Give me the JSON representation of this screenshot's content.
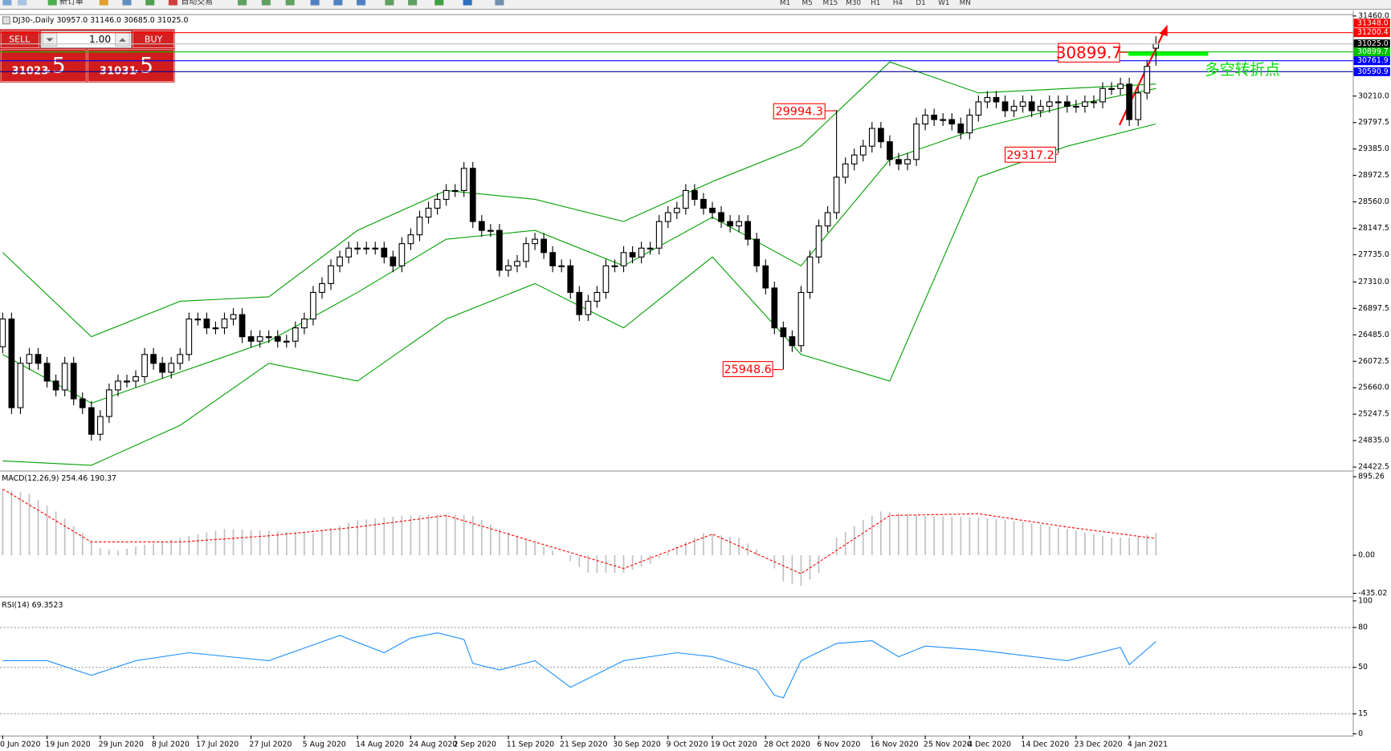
{
  "toolbar": {
    "new_order": "新订单",
    "auto_trading": "自动交易",
    "timeframes": [
      "M1",
      "M5",
      "M15",
      "M30",
      "H1",
      "H4",
      "D1",
      "W1",
      "MN"
    ]
  },
  "trade_panel": {
    "sell": "SELL",
    "lot": "1.00",
    "buy": "BUY",
    "bid": "31023",
    "bid_fraction": ".5",
    "ask": "31031",
    "ask_fraction": ".5"
  },
  "chart_data": [
    {
      "type": "candlestick",
      "title": "DJ30-,Daily  30957.0 31146.0 30685.0 31025.0",
      "categories": [
        "0 Jun 2020",
        null,
        null,
        null,
        null,
        "19 Jun 2020",
        null,
        null,
        null,
        null,
        null,
        "29 Jun 2020",
        null,
        null,
        null,
        null,
        null,
        "8 Jul 2020",
        null,
        null,
        null,
        null,
        "17 Jul 2020",
        null,
        null,
        null,
        null,
        null,
        "27 Jul 2020",
        null,
        null,
        null,
        null,
        null,
        "5 Aug 2020",
        null,
        null,
        null,
        null,
        null,
        "14 Aug 2020",
        null,
        null,
        null,
        null,
        null,
        "24 Aug 2020",
        null,
        null,
        null,
        null,
        "2 Sep 2020",
        null,
        null,
        null,
        null,
        null,
        "11 Sep 2020",
        null,
        null,
        null,
        null,
        null,
        "21 Sep 2020",
        null,
        null,
        null,
        null,
        null,
        "30 Sep 2020",
        null,
        null,
        null,
        null,
        null,
        "9 Oct 2020",
        null,
        null,
        null,
        null,
        "19 Oct 2020",
        null,
        null,
        null,
        null,
        null,
        "28 Oct 2020",
        null,
        null,
        null,
        null,
        null,
        "6 Nov 2020",
        null,
        null,
        null,
        null,
        null,
        "16 Nov 2020",
        null,
        null,
        null,
        null,
        null,
        "25 Nov 2020",
        null,
        null,
        null,
        null,
        "4 Dec 2020",
        null,
        null,
        null,
        null,
        null,
        "14 Dec 2020",
        null,
        null,
        null,
        null,
        null,
        "23 Dec 2020",
        null,
        null,
        null,
        null,
        null,
        "4 Jan 2021",
        null,
        null,
        null
      ],
      "open": [
        26300,
        26732,
        25349,
        26041,
        26179,
        26041,
        25764,
        25626,
        26041,
        25487,
        25349,
        24934,
        25211,
        25626,
        25764,
        25764,
        25833,
        26179,
        26041,
        25902,
        26041,
        26179,
        26732,
        26732,
        26594,
        26594,
        26732,
        26801,
        26456,
        26386,
        26456,
        26456,
        26386,
        26386,
        26594,
        26732,
        27147,
        27285,
        27562,
        27700,
        27838,
        27838,
        27838,
        27838,
        27700,
        27562,
        27908,
        28046,
        28322,
        28461,
        28599,
        28737,
        28737,
        29083,
        28253,
        28115,
        28115,
        27493,
        27562,
        27631,
        27908,
        27977,
        27769,
        27562,
        27562,
        27147,
        26801,
        27009,
        27147,
        27562,
        27562,
        27769,
        27700,
        27838,
        27838,
        28253,
        28392,
        28461,
        28737,
        28599,
        28461,
        28392,
        28253,
        28184,
        28253,
        27977,
        27562,
        27216,
        26594,
        26456,
        26317,
        27147,
        27700,
        28184,
        28392,
        28945,
        29152,
        29291,
        29429,
        29706,
        29498,
        29221,
        29152,
        29221,
        29775,
        29913,
        29844,
        29844,
        29775,
        29636,
        29913,
        30120,
        30189,
        30120,
        29982,
        30051,
        30120,
        29982,
        30051,
        30120,
        30120,
        30051,
        30051,
        30120,
        30120,
        30328,
        30328,
        30397,
        29844,
        30259,
        30957
      ],
      "high": [
        26832,
        26832,
        26141,
        26279,
        26279,
        26141,
        25864,
        26141,
        26141,
        25587,
        25449,
        25311,
        25726,
        25864,
        25864,
        25933,
        26279,
        26279,
        26141,
        26141,
        26279,
        26832,
        26832,
        26832,
        26694,
        26832,
        26901,
        26901,
        26556,
        26556,
        26556,
        26556,
        26486,
        26694,
        26832,
        27247,
        27385,
        27662,
        27800,
        27938,
        27938,
        27938,
        27938,
        27938,
        27800,
        28008,
        28146,
        28422,
        28561,
        28699,
        28837,
        28837,
        29183,
        29183,
        28353,
        28215,
        28215,
        27662,
        27731,
        28008,
        28077,
        28077,
        27869,
        27662,
        27662,
        27247,
        27109,
        27247,
        27662,
        27662,
        27869,
        27869,
        27938,
        27938,
        28353,
        28492,
        28561,
        28837,
        28837,
        28699,
        28561,
        28492,
        28353,
        28353,
        28353,
        28077,
        27662,
        27316,
        26694,
        26556,
        27247,
        27800,
        28284,
        28492,
        29994.3,
        29252,
        29391,
        29529,
        29806,
        29806,
        29598,
        29321,
        29321,
        29875,
        30013,
        30013,
        29944,
        29944,
        29875,
        30013,
        30220,
        30289,
        30289,
        30220,
        30151,
        30220,
        30220,
        30151,
        30220,
        30220,
        30220,
        30151,
        30220,
        30220,
        30428,
        30428,
        30497,
        30497,
        30359,
        30774,
        31146
      ],
      "low": [
        26200,
        25249,
        25249,
        25941,
        25941,
        25664,
        25526,
        25526,
        25387,
        25249,
        24834,
        24834,
        25111,
        25526,
        25664,
        25664,
        25733,
        25941,
        25802,
        25802,
        25941,
        26079,
        26632,
        26494,
        26494,
        26494,
        26632,
        26356,
        26286,
        26286,
        26356,
        26286,
        26286,
        26286,
        26494,
        26632,
        27047,
        27185,
        27462,
        27600,
        27738,
        27738,
        27738,
        27600,
        27462,
        27462,
        27808,
        27946,
        28222,
        28361,
        28499,
        28637,
        28637,
        28153,
        28015,
        28015,
        27393,
        27393,
        27462,
        27531,
        27808,
        27669,
        27462,
        27462,
        27047,
        26701,
        26701,
        26909,
        27047,
        27462,
        27462,
        27600,
        27600,
        27738,
        27738,
        28153,
        28292,
        28361,
        28499,
        28361,
        28292,
        28153,
        28084,
        28084,
        27877,
        27462,
        27116,
        26494,
        25948.6,
        26217,
        26217,
        27047,
        27600,
        28084,
        28292,
        28845,
        29052,
        29191,
        29329,
        29398,
        29121,
        29052,
        29052,
        29121,
        29675,
        29744,
        29744,
        29675,
        29536,
        29536,
        29813,
        30020,
        30020,
        29882,
        29882,
        29951,
        29882,
        29882,
        29951,
        29317.2,
        29951,
        29951,
        29951,
        30020,
        30020,
        30228,
        30228,
        29744,
        29744,
        30159,
        30685
      ],
      "close": [
        26732,
        25349,
        26041,
        26179,
        26041,
        25764,
        25626,
        26041,
        25487,
        25349,
        24934,
        25211,
        25626,
        25764,
        25764,
        25833,
        26179,
        26041,
        25902,
        26041,
        26179,
        26732,
        26732,
        26594,
        26594,
        26732,
        26801,
        26456,
        26386,
        26456,
        26456,
        26386,
        26386,
        26594,
        26732,
        27147,
        27285,
        27562,
        27700,
        27838,
        27838,
        27838,
        27838,
        27700,
        27562,
        27908,
        28046,
        28322,
        28461,
        28599,
        28737,
        28737,
        29083,
        28253,
        28115,
        28115,
        27493,
        27562,
        27631,
        27908,
        27977,
        27769,
        27562,
        27562,
        27147,
        26801,
        27009,
        27147,
        27562,
        27562,
        27769,
        27700,
        27838,
        27838,
        28253,
        28392,
        28461,
        28737,
        28599,
        28461,
        28392,
        28253,
        28184,
        28253,
        27977,
        27562,
        27216,
        26594,
        26456,
        26317,
        27147,
        27700,
        28184,
        28392,
        28945,
        29152,
        29291,
        29429,
        29706,
        29498,
        29221,
        29152,
        29221,
        29775,
        29913,
        29844,
        29844,
        29775,
        29636,
        29913,
        30120,
        30189,
        30120,
        29982,
        30051,
        30120,
        29982,
        30051,
        30120,
        30120,
        30051,
        30051,
        30120,
        30120,
        30328,
        30328,
        30397,
        29844,
        30259,
        30674,
        31025
      ],
      "bands": {
        "color": "#00a000",
        "x": [
          0,
          10,
          20,
          30,
          40,
          50,
          60,
          70,
          80,
          90,
          100,
          110,
          120,
          130
        ],
        "upper": [
          27769,
          26456,
          27009,
          27078,
          28115,
          28737,
          28599,
          28253,
          28876,
          29429,
          30743,
          30259,
          30328,
          30397
        ],
        "middle": [
          26179,
          25418,
          25902,
          26386,
          27147,
          27977,
          28115,
          27562,
          28322,
          27562,
          29221,
          29706,
          30051,
          30328
        ],
        "lower": [
          24519,
          24450,
          25073,
          26041,
          25764,
          26732,
          27285,
          26594,
          27700,
          26179,
          25764,
          28945,
          29429,
          29775
        ]
      },
      "ylim": [
        24381,
        31488
      ],
      "yticks": [
        {
          "value": 31460,
          "label": "31460.0"
        },
        {
          "value": 30210,
          "label": "30210.0"
        },
        29797.5,
        {
          "value": 29385,
          "label": "29385.0"
        },
        28972.5,
        {
          "value": 28560,
          "label": "28560.0"
        },
        28147.5,
        {
          "value": 27735,
          "label": "27735.0"
        },
        {
          "value": 27310,
          "label": "27310.0"
        },
        26897.5,
        {
          "value": 26485,
          "label": "26485.0"
        },
        26072.5,
        {
          "value": 25660,
          "label": "25660.0"
        },
        25247.5,
        {
          "value": 24835,
          "label": "24835.0"
        },
        24422.5
      ],
      "price_lines": [
        {
          "value": 31348,
          "label": "31348.0",
          "color": "#ff0000"
        },
        {
          "value": 31200.4,
          "color": "#ff0000",
          "line_color": "#ff0000"
        },
        {
          "value": 31025,
          "label": "31025.0",
          "color": "#000000",
          "line_color": "#c0c0c0"
        },
        {
          "value": 30899.7,
          "color": "#00c000",
          "line_color": "#00c000"
        },
        {
          "value": 30761.9,
          "color": "#0000ff",
          "line_color": "#0000ff"
        },
        {
          "value": 30590.9,
          "color": "#0000ff",
          "line_color": "#0000a0"
        }
      ],
      "annotations": [
        {
          "value": 30899.7
        },
        {
          "value": 29994.3
        },
        {
          "value": 29317.2
        },
        {
          "value": 25948.6
        }
      ],
      "note": "多空转折点"
    },
    {
      "type": "macd",
      "title": "MACD(12,26,9) 254.46 190.37",
      "color": "#c0c0c0",
      "values": [
        750,
        733,
        717,
        700,
        633,
        567,
        500,
        417,
        333,
        250,
        165,
        80,
        65,
        50,
        73,
        97,
        120,
        140,
        160,
        180,
        200,
        220,
        240,
        260,
        280,
        300,
        296,
        292,
        288,
        284,
        280,
        274,
        268,
        262,
        256,
        250,
        280,
        310,
        340,
        370,
        400,
        410,
        420,
        430,
        440,
        450,
        454,
        458,
        462,
        466,
        470,
        463,
        457,
        450,
        400,
        350,
        300,
        263,
        225,
        188,
        150,
        100,
        50,
        0,
        -67,
        -133,
        -200,
        -200,
        -200,
        -200,
        -200,
        -167,
        -133,
        -100,
        -33,
        33,
        100,
        150,
        200,
        250,
        238,
        225,
        213,
        200,
        133,
        67,
        0,
        -150,
        -300,
        -325,
        -350,
        -275,
        -200,
        0,
        200,
        267,
        333,
        400,
        450,
        500,
        490,
        480,
        470,
        460,
        450,
        447,
        443,
        440,
        437,
        433,
        430,
        420,
        410,
        400,
        390,
        380,
        364,
        348,
        332,
        316,
        300,
        280,
        260,
        240,
        220,
        200,
        200,
        200,
        217,
        233,
        254.46
      ],
      "signal": {
        "color": "#ff0000",
        "x": [
          0,
          10,
          20,
          30,
          40,
          50,
          60,
          70,
          80,
          90,
          100,
          110,
          120,
          130
        ],
        "values": [
          755,
          151,
          151,
          221,
          322,
          453,
          151,
          -151,
          241,
          -211,
          453,
          473,
          322,
          190.37
        ]
      },
      "ylim": [
        -460,
        955
      ],
      "yticks": [
        895.26,
        {
          "value": 0,
          "label": "0.00"
        },
        -435.02
      ]
    },
    {
      "type": "line",
      "title": "RSI(14) 69.3523",
      "color": "#1e90ff",
      "x": [
        0,
        5,
        10,
        15,
        21,
        30,
        38,
        43,
        46,
        49,
        52,
        53,
        56,
        60,
        64,
        70,
        76,
        80,
        85,
        87,
        88,
        90,
        94,
        98,
        101,
        104,
        110,
        120,
        126,
        127,
        130
      ],
      "values": [
        55,
        55,
        44,
        55,
        61,
        55,
        74,
        61,
        72,
        76,
        71,
        53,
        48,
        55,
        35,
        55,
        61,
        58,
        48,
        29,
        27,
        55,
        68,
        70,
        58,
        66,
        63,
        55,
        65,
        52,
        69.3523
      ],
      "ylim": [
        0,
        100
      ],
      "yticks": [
        100,
        80,
        50,
        15,
        0
      ]
    }
  ]
}
